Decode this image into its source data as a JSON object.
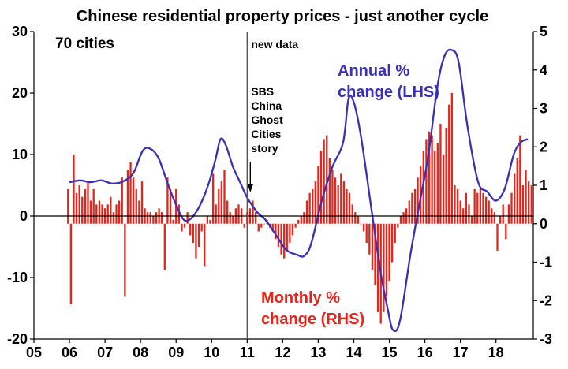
{
  "chart_data": {
    "type": "bar+line",
    "title": "Chinese residential property prices - just another cycle",
    "colors": {
      "bars": "#e8241a",
      "line": "#3a2fb6",
      "axis": "#000000",
      "annotation_line": "#555555"
    },
    "x_ticks": [
      "05",
      "06",
      "07",
      "08",
      "09",
      "10",
      "11",
      "12",
      "13",
      "14",
      "15",
      "16",
      "17",
      "18"
    ],
    "xlim": [
      2005,
      2019.05
    ],
    "left_axis": {
      "ticks": [
        "-20",
        "-10",
        "0",
        "10",
        "20",
        "30"
      ],
      "ylim": [
        -20,
        30
      ]
    },
    "right_axis": {
      "ticks": [
        "-3",
        "-2",
        "-1",
        "0",
        "1",
        "2",
        "3",
        "4",
        "5"
      ],
      "ylim": [
        -3,
        5
      ]
    },
    "annotations": {
      "cities": "70 cities",
      "new_data": "new data",
      "sbs": [
        "SBS",
        "China",
        "Ghost",
        "Cities",
        "story"
      ],
      "annual_label": [
        "Annual %",
        "change (LHS)"
      ],
      "monthly_label": [
        "Monthly %",
        "change (RHS)"
      ]
    },
    "series": [
      {
        "name": "Annual % change (LHS)",
        "axis": "left",
        "points": [
          [
            2006.0,
            5.5
          ],
          [
            2006.3,
            5.8
          ],
          [
            2006.6,
            5.5
          ],
          [
            2006.9,
            5.8
          ],
          [
            2007.2,
            5.3
          ],
          [
            2007.5,
            5.6
          ],
          [
            2007.8,
            7.0
          ],
          [
            2008.05,
            10.5
          ],
          [
            2008.25,
            11.0
          ],
          [
            2008.5,
            9.5
          ],
          [
            2008.75,
            5.5
          ],
          [
            2008.95,
            2.5
          ],
          [
            2009.2,
            -0.5
          ],
          [
            2009.4,
            -0.5
          ],
          [
            2009.65,
            1.5
          ],
          [
            2009.9,
            5.0
          ],
          [
            2010.1,
            9.0
          ],
          [
            2010.25,
            12.5
          ],
          [
            2010.4,
            11.5
          ],
          [
            2010.6,
            8.0
          ],
          [
            2010.8,
            5.5
          ],
          [
            2011.0,
            3.0
          ],
          [
            2011.3,
            0.5
          ],
          [
            2011.5,
            -0.5
          ],
          [
            2011.8,
            -3.0
          ],
          [
            2012.1,
            -5.5
          ],
          [
            2012.4,
            -6.3
          ],
          [
            2012.6,
            -6.5
          ],
          [
            2012.8,
            -4.5
          ],
          [
            2013.1,
            2.5
          ],
          [
            2013.4,
            8.0
          ],
          [
            2013.7,
            12.0
          ],
          [
            2013.85,
            19.0
          ],
          [
            2014.0,
            18.5
          ],
          [
            2014.2,
            13.0
          ],
          [
            2014.5,
            1.0
          ],
          [
            2014.75,
            -9.0
          ],
          [
            2014.95,
            -15.0
          ],
          [
            2015.1,
            -18.5
          ],
          [
            2015.3,
            -17.0
          ],
          [
            2015.6,
            -6.0
          ],
          [
            2015.85,
            2.0
          ],
          [
            2016.1,
            10.0
          ],
          [
            2016.35,
            21.0
          ],
          [
            2016.55,
            26.0
          ],
          [
            2016.75,
            27.0
          ],
          [
            2016.95,
            25.0
          ],
          [
            2017.2,
            14.5
          ],
          [
            2017.5,
            5.5
          ],
          [
            2017.75,
            4.0
          ],
          [
            2018.0,
            2.5
          ],
          [
            2018.25,
            4.5
          ],
          [
            2018.5,
            10.0
          ],
          [
            2018.7,
            12.0
          ],
          [
            2018.9,
            12.5
          ]
        ]
      },
      {
        "name": "Monthly % change (RHS)",
        "axis": "right",
        "bars": [
          [
            2005.96,
            0.9
          ],
          [
            2006.04,
            -2.1
          ],
          [
            2006.12,
            1.8
          ],
          [
            2006.2,
            0.8
          ],
          [
            2006.28,
            1.0
          ],
          [
            2006.36,
            0.7
          ],
          [
            2006.44,
            0.9
          ],
          [
            2006.52,
            1.1
          ],
          [
            2006.6,
            0.6
          ],
          [
            2006.68,
            0.9
          ],
          [
            2006.76,
            0.5
          ],
          [
            2006.84,
            0.6
          ],
          [
            2006.92,
            0.5
          ],
          [
            2007.0,
            0.4
          ],
          [
            2007.08,
            0.5
          ],
          [
            2007.16,
            0.7
          ],
          [
            2007.24,
            0.3
          ],
          [
            2007.32,
            0.5
          ],
          [
            2007.4,
            0.6
          ],
          [
            2007.48,
            1.2
          ],
          [
            2007.56,
            -1.9
          ],
          [
            2007.64,
            1.4
          ],
          [
            2007.72,
            1.6
          ],
          [
            2007.8,
            1.2
          ],
          [
            2007.88,
            0.9
          ],
          [
            2007.96,
            0.6
          ],
          [
            2008.04,
            1.1
          ],
          [
            2008.12,
            0.4
          ],
          [
            2008.2,
            0.3
          ],
          [
            2008.28,
            0.3
          ],
          [
            2008.36,
            0.2
          ],
          [
            2008.44,
            0.3
          ],
          [
            2008.52,
            0.4
          ],
          [
            2008.6,
            0.3
          ],
          [
            2008.68,
            -1.2
          ],
          [
            2008.76,
            1.2
          ],
          [
            2008.84,
            0.9
          ],
          [
            2008.92,
            0.1
          ],
          [
            2009.0,
            0.9
          ],
          [
            2009.08,
            0.5
          ],
          [
            2009.16,
            -0.2
          ],
          [
            2009.24,
            -0.1
          ],
          [
            2009.32,
            0.3
          ],
          [
            2009.4,
            -0.3
          ],
          [
            2009.48,
            -0.5
          ],
          [
            2009.56,
            -0.9
          ],
          [
            2009.64,
            -0.6
          ],
          [
            2009.72,
            -0.2
          ],
          [
            2009.8,
            -1.1
          ],
          [
            2009.88,
            0.2
          ],
          [
            2009.96,
            0.1
          ],
          [
            2010.04,
            1.3
          ],
          [
            2010.12,
            0.5
          ],
          [
            2010.2,
            0.9
          ],
          [
            2010.28,
            1.1
          ],
          [
            2010.36,
            1.4
          ],
          [
            2010.44,
            0.6
          ],
          [
            2010.52,
            0.3
          ],
          [
            2010.6,
            0.2
          ],
          [
            2010.68,
            0.4
          ],
          [
            2010.76,
            0.5
          ],
          [
            2010.84,
            0.4
          ],
          [
            2010.92,
            -0.1
          ],
          [
            2011.0,
            0.3
          ],
          [
            2011.08,
            0.4
          ],
          [
            2011.16,
            0.6
          ],
          [
            2011.24,
            0.3
          ],
          [
            2011.32,
            -0.2
          ],
          [
            2011.4,
            -0.1
          ],
          [
            2011.48,
            0.0
          ],
          [
            2011.56,
            0.1
          ],
          [
            2011.64,
            -0.1
          ],
          [
            2011.72,
            -0.2
          ],
          [
            2011.8,
            -0.4
          ],
          [
            2011.88,
            -0.6
          ],
          [
            2011.96,
            -0.8
          ],
          [
            2012.04,
            -0.9
          ],
          [
            2012.12,
            -0.7
          ],
          [
            2012.2,
            -0.5
          ],
          [
            2012.28,
            -0.3
          ],
          [
            2012.36,
            -0.1
          ],
          [
            2012.44,
            0.1
          ],
          [
            2012.52,
            0.2
          ],
          [
            2012.6,
            0.3
          ],
          [
            2012.68,
            0.6
          ],
          [
            2012.76,
            0.8
          ],
          [
            2012.84,
            0.9
          ],
          [
            2012.92,
            1.1
          ],
          [
            2013.0,
            1.5
          ],
          [
            2013.08,
            1.9
          ],
          [
            2013.16,
            2.2
          ],
          [
            2013.24,
            2.3
          ],
          [
            2013.32,
            1.7
          ],
          [
            2013.4,
            1.4
          ],
          [
            2013.48,
            1.2
          ],
          [
            2013.56,
            1.0
          ],
          [
            2013.64,
            1.3
          ],
          [
            2013.72,
            1.1
          ],
          [
            2013.8,
            0.9
          ],
          [
            2013.88,
            0.8
          ],
          [
            2013.96,
            0.5
          ],
          [
            2014.04,
            0.3
          ],
          [
            2014.12,
            0.2
          ],
          [
            2014.2,
            0.0
          ],
          [
            2014.28,
            -0.2
          ],
          [
            2014.36,
            -0.5
          ],
          [
            2014.44,
            -0.8
          ],
          [
            2014.52,
            -1.2
          ],
          [
            2014.6,
            -1.6
          ],
          [
            2014.68,
            -2.3
          ],
          [
            2014.76,
            -2.6
          ],
          [
            2014.84,
            -2.3
          ],
          [
            2014.92,
            -1.9
          ],
          [
            2015.0,
            -1.5
          ],
          [
            2015.08,
            -1.0
          ],
          [
            2015.16,
            -0.5
          ],
          [
            2015.24,
            -0.1
          ],
          [
            2015.32,
            0.2
          ],
          [
            2015.4,
            0.3
          ],
          [
            2015.48,
            0.4
          ],
          [
            2015.56,
            0.6
          ],
          [
            2015.64,
            0.8
          ],
          [
            2015.72,
            0.9
          ],
          [
            2015.8,
            1.2
          ],
          [
            2015.88,
            1.5
          ],
          [
            2015.96,
            1.9
          ],
          [
            2016.04,
            2.2
          ],
          [
            2016.12,
            2.4
          ],
          [
            2016.2,
            2.3
          ],
          [
            2016.28,
            1.9
          ],
          [
            2016.36,
            2.1
          ],
          [
            2016.44,
            2.6
          ],
          [
            2016.52,
            1.8
          ],
          [
            2016.6,
            2.5
          ],
          [
            2016.68,
            3.1
          ],
          [
            2016.76,
            3.4
          ],
          [
            2016.84,
            1.0
          ],
          [
            2016.92,
            0.9
          ],
          [
            2017.0,
            0.6
          ],
          [
            2017.08,
            0.4
          ],
          [
            2017.16,
            0.8
          ],
          [
            2017.24,
            0.5
          ],
          [
            2017.32,
            0.2
          ],
          [
            2017.4,
            0.9
          ],
          [
            2017.48,
            0.8
          ],
          [
            2017.56,
            0.9
          ],
          [
            2017.64,
            0.8
          ],
          [
            2017.72,
            0.7
          ],
          [
            2017.8,
            0.6
          ],
          [
            2017.88,
            0.4
          ],
          [
            2017.96,
            0.3
          ],
          [
            2018.04,
            -0.7
          ],
          [
            2018.12,
            0.2
          ],
          [
            2018.2,
            0.5
          ],
          [
            2018.28,
            -0.4
          ],
          [
            2018.36,
            0.5
          ],
          [
            2018.44,
            0.8
          ],
          [
            2018.52,
            1.3
          ],
          [
            2018.6,
            1.7
          ],
          [
            2018.68,
            2.3
          ],
          [
            2018.76,
            1.0
          ],
          [
            2018.84,
            1.4
          ],
          [
            2018.92,
            1.1
          ],
          [
            2019.0,
            1.0
          ]
        ]
      }
    ]
  }
}
